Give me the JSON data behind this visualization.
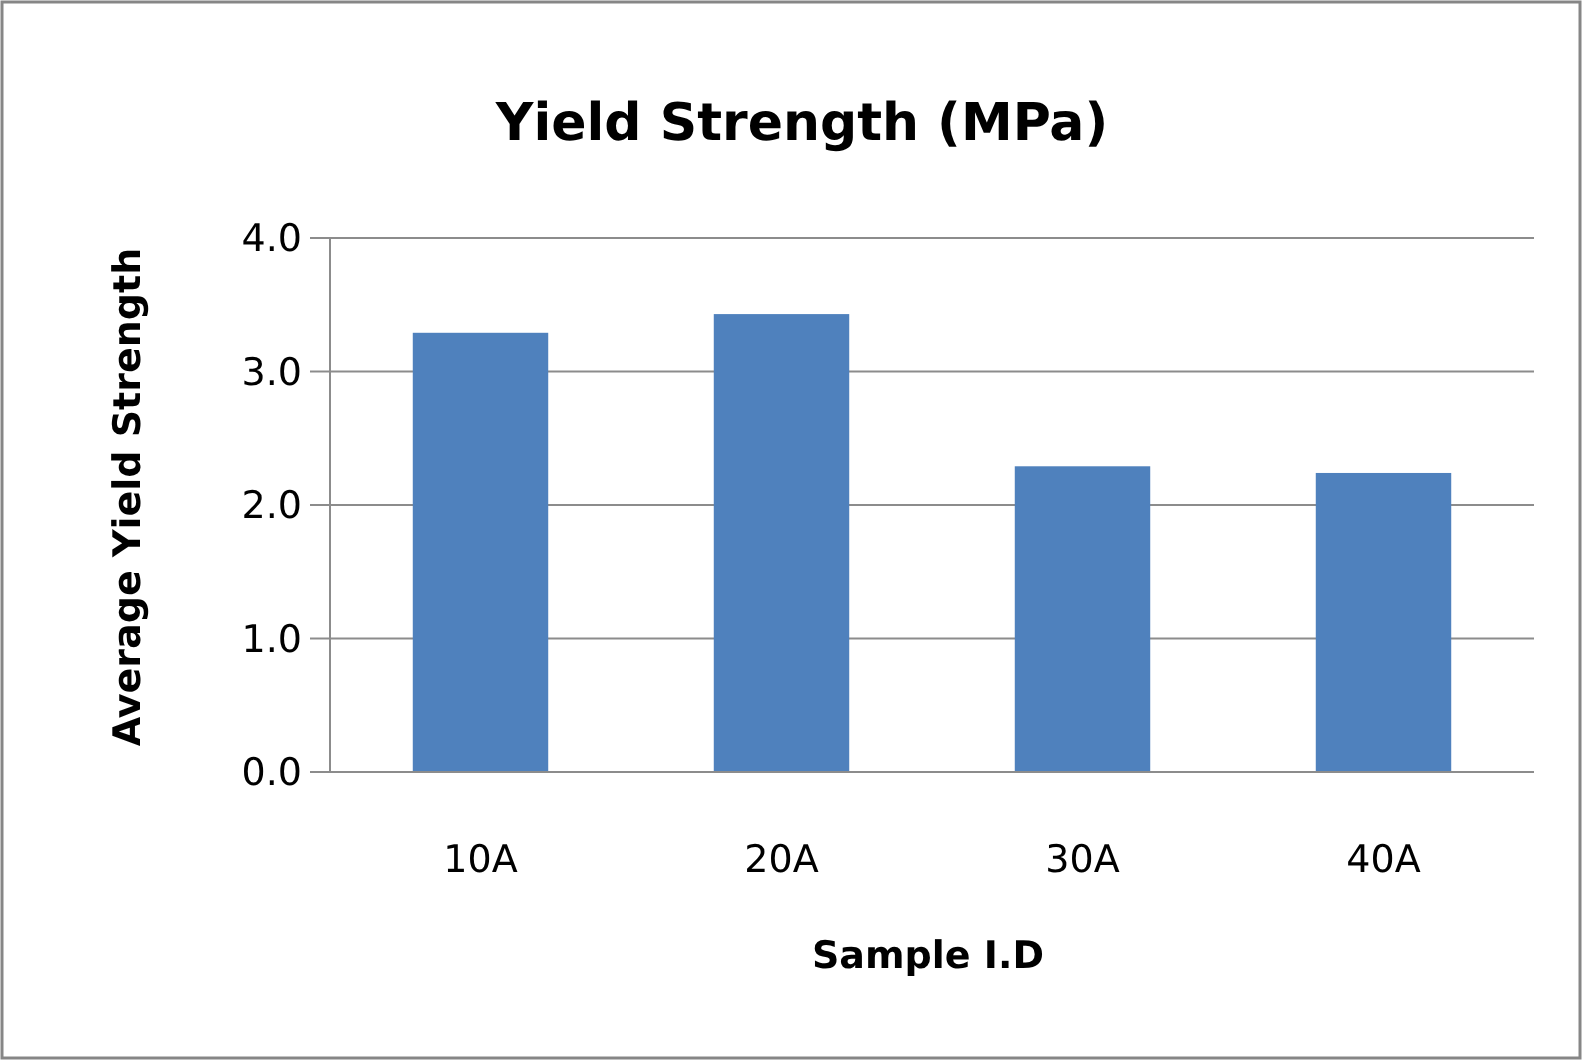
{
  "chart_data": {
    "type": "bar",
    "title": "Yield Strength (MPa)",
    "xlabel": "Sample I.D",
    "ylabel": "Average Yield Strength",
    "categories": [
      "10A",
      "20A",
      "30A",
      "40A"
    ],
    "values": [
      3.29,
      3.43,
      2.29,
      2.24
    ],
    "color": "#4f81bd",
    "ylim": [
      0,
      4
    ],
    "yticks": [
      {
        "value": 0,
        "label": "0.0"
      },
      {
        "value": 1,
        "label": "1.0"
      },
      {
        "value": 2,
        "label": "2.0"
      },
      {
        "value": 3,
        "label": "3.0"
      },
      {
        "value": 4,
        "label": "4.0"
      }
    ],
    "grid": "y"
  }
}
